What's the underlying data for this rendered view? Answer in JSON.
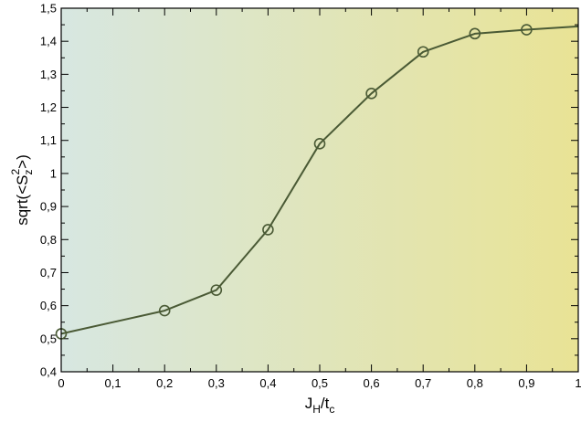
{
  "chart_data": {
    "type": "line",
    "title": "",
    "x": [
      0,
      0.2,
      0.3,
      0.4,
      0.5,
      0.6,
      0.7,
      0.8,
      0.9,
      1.0
    ],
    "series": [
      {
        "values": [
          0.515,
          0.585,
          0.647,
          0.83,
          1.09,
          1.242,
          1.368,
          1.423,
          1.435,
          1.445
        ],
        "markers": [
          true,
          true,
          true,
          true,
          true,
          true,
          true,
          true,
          true,
          false
        ],
        "color": "#4a5a35"
      }
    ],
    "xlabel": {
      "main": "J",
      "sub1": "H",
      "mid": "/t",
      "sub2": "c"
    },
    "ylabel": {
      "pre": "sqrt(<S",
      "sub": "z",
      "sup": "2",
      "post": ">)"
    },
    "xlim": [
      0,
      1
    ],
    "ylim": [
      0.4,
      1.5
    ],
    "xticks": [
      0,
      0.1,
      0.2,
      0.3,
      0.4,
      0.5,
      0.6,
      0.7,
      0.8,
      0.9,
      1
    ],
    "xtick_labels": [
      "0",
      "0,1",
      "0,2",
      "0,3",
      "0,4",
      "0,5",
      "0,6",
      "0,7",
      "0,8",
      "0,9",
      "1"
    ],
    "yticks": [
      0.4,
      0.5,
      0.6,
      0.7,
      0.8,
      0.9,
      1.0,
      1.1,
      1.2,
      1.3,
      1.4,
      1.5
    ],
    "ytick_labels": [
      "0,4",
      "0,5",
      "0,6",
      "0,7",
      "0,8",
      "0,9",
      "1",
      "1,1",
      "1,2",
      "1,3",
      "1,4",
      "1,5"
    ],
    "grid": false,
    "background_gradient": [
      "#d7e7e1",
      "#e9e395"
    ]
  }
}
